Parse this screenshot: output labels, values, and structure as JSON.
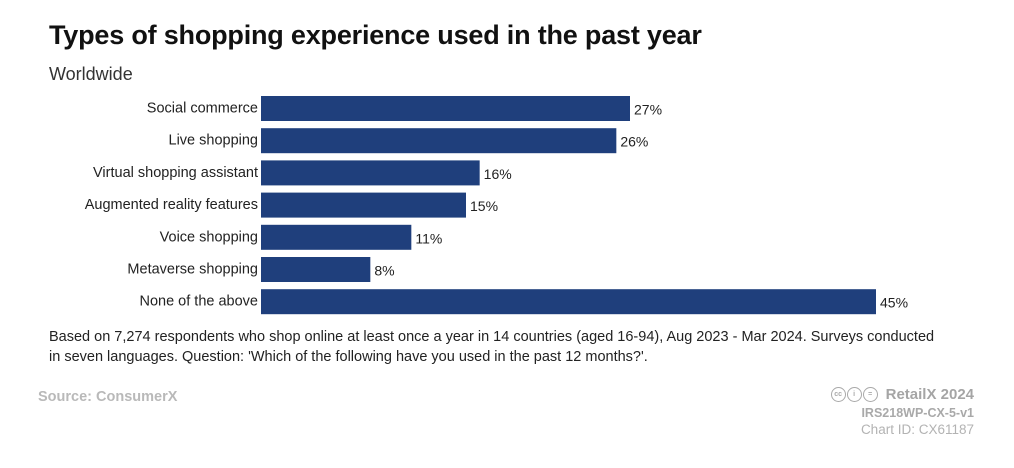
{
  "header": {
    "title": "Types of shopping experience used in the past year",
    "subtitle": "Worldwide"
  },
  "chart_data": {
    "type": "bar",
    "orientation": "horizontal",
    "title": "Types of shopping experience used in the past year",
    "subtitle": "Worldwide",
    "categories": [
      "Social commerce",
      "Live shopping",
      "Virtual shopping assistant",
      "Augmented reality features",
      "Voice shopping",
      "Metaverse shopping",
      "None of the above"
    ],
    "values": [
      27,
      26,
      16,
      15,
      11,
      8,
      45
    ],
    "value_labels": [
      "27%",
      "26%",
      "16%",
      "15%",
      "11%",
      "8%",
      "45%"
    ],
    "unit": "%",
    "xlim": [
      0,
      45
    ],
    "grid": false,
    "bar_color": "#1f3f7c"
  },
  "footer": {
    "note": "Based on 7,274 respondents who shop online at least once a year in 14 countries (aged 16-94), Aug 2023 - Mar 2024. Surveys conducted in seven languages. Question: 'Which of the following have you used in the past 12 months?'.",
    "source": "Source: ConsumerX",
    "license_icons": [
      "cc-icon",
      "by-icon",
      "nd-icon"
    ],
    "brand": "RetailX 2024",
    "code": "IRS218WP-CX-5-v1",
    "chart_id": "Chart ID: CX61187"
  }
}
